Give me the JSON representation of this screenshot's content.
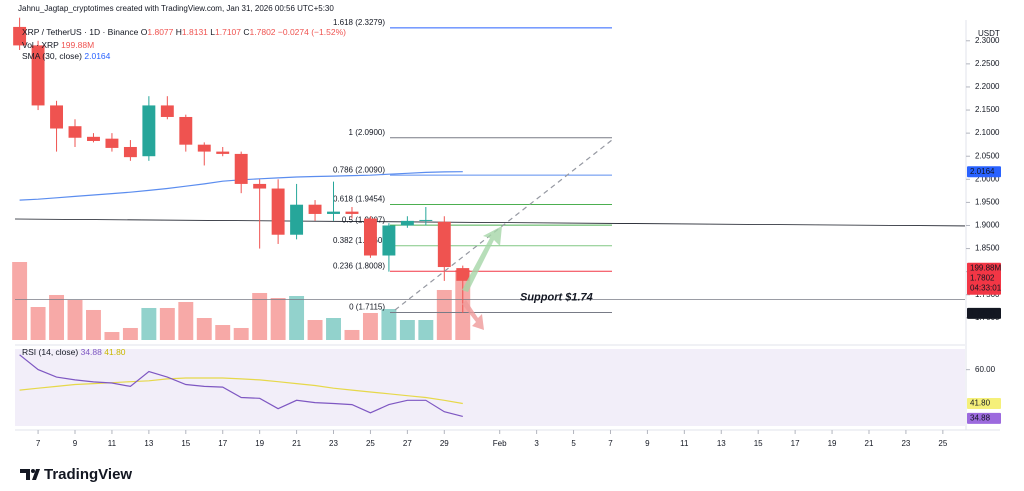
{
  "header": "Jahnu_Jagtap_cryptotimes created with TradingView.com, Jan 31, 2026 00:56 UTC+5:30",
  "chart_data": {
    "type": "candlestick",
    "symbol": "XRP / TetherUS · 1D · Binance",
    "ohlc_prefixes": [
      "O",
      "H",
      "L",
      "C"
    ],
    "change": "−0.0274 (−1.52%)",
    "currency": "USDT",
    "x": [
      6,
      7,
      8,
      9,
      10,
      11,
      12,
      13,
      14,
      15,
      16,
      17,
      18,
      19,
      20,
      21,
      22,
      23,
      24,
      25,
      26,
      27,
      28,
      29,
      30
    ],
    "open": [
      2.33,
      2.29,
      2.16,
      2.115,
      2.092,
      2.088,
      2.07,
      2.05,
      2.16,
      2.135,
      2.075,
      2.06,
      2.055,
      1.99,
      1.98,
      1.88,
      1.945,
      1.925,
      1.93,
      1.915,
      1.835,
      1.9,
      1.91,
      1.908,
      1.8077
    ],
    "high": [
      2.35,
      2.3,
      2.17,
      2.13,
      2.1,
      2.1,
      2.085,
      2.18,
      2.18,
      2.14,
      2.08,
      2.07,
      2.06,
      2.0,
      2.0,
      1.99,
      1.955,
      1.995,
      1.94,
      1.92,
      1.905,
      1.92,
      1.94,
      1.92,
      1.8131
    ],
    "low": [
      2.28,
      2.15,
      2.06,
      2.07,
      2.08,
      2.06,
      2.04,
      2.04,
      2.13,
      2.06,
      2.03,
      2.05,
      1.97,
      1.85,
      1.86,
      1.87,
      1.91,
      1.91,
      1.915,
      1.83,
      1.8,
      1.895,
      1.9,
      1.78,
      1.7107
    ],
    "close": [
      2.29,
      2.16,
      2.11,
      2.09,
      2.083,
      2.068,
      2.048,
      2.16,
      2.135,
      2.075,
      2.06,
      2.055,
      1.99,
      1.98,
      1.88,
      1.945,
      1.925,
      1.93,
      1.925,
      1.835,
      1.9,
      1.91,
      1.912,
      1.81,
      1.7802
    ],
    "up_color": "#26a69a",
    "down_color": "#ef5350",
    "xlim": [
      5.75,
      57.2
    ],
    "xticks": [
      7,
      9,
      11,
      13,
      15,
      17,
      19,
      21,
      23,
      25,
      27,
      29,
      {
        "value": 32,
        "label": "Feb"
      },
      {
        "value": 34,
        "label": "3"
      },
      {
        "value": 36,
        "label": "5"
      },
      {
        "value": 38,
        "label": "7"
      },
      {
        "value": 40,
        "label": "9"
      },
      {
        "value": 42,
        "label": "11"
      },
      {
        "value": 44,
        "label": "13"
      },
      {
        "value": 46,
        "label": "15"
      },
      {
        "value": 48,
        "label": "17"
      },
      {
        "value": 50,
        "label": "19"
      },
      {
        "value": 52,
        "label": "21"
      },
      {
        "value": 54,
        "label": "23"
      },
      {
        "value": 56,
        "label": "25"
      }
    ],
    "ylim": [
      1.652,
      2.345
    ],
    "yticks": [
      {
        "value": 1.7,
        "label": "1.7000"
      },
      {
        "value": 1.75,
        "label": "1.7500"
      },
      {
        "value": 1.8,
        "label": "1.8000"
      },
      {
        "value": 1.85,
        "label": "1.8500"
      },
      {
        "value": 1.9,
        "label": "1.9000"
      },
      {
        "value": 1.95,
        "label": "1.9500"
      },
      {
        "value": 2.0,
        "label": "2.0000"
      },
      {
        "value": 2.05,
        "label": "2.0500"
      },
      {
        "value": 2.1,
        "label": "2.1000"
      },
      {
        "value": 2.15,
        "label": "2.1500"
      },
      {
        "value": 2.2,
        "label": "2.2000"
      },
      {
        "value": 2.25,
        "label": "2.2500"
      },
      {
        "value": 2.3,
        "label": "2.3000"
      }
    ],
    "countdown": "04:33:01",
    "sma": {
      "name": "SMA (30, close)",
      "color": "#5b8def",
      "values": [
        1.955,
        1.957,
        1.96,
        1.963,
        1.966,
        1.969,
        1.972,
        1.976,
        1.98,
        1.985,
        1.99,
        1.996,
        1.999,
        2.001,
        2.003,
        2.005,
        2.006,
        2.007,
        2.008,
        2.009,
        2.011,
        2.013,
        2.015,
        2.016,
        2.0164
      ]
    },
    "volume": {
      "name": "Vol · XRP",
      "last_label": "199.88M",
      "values": [
        222.7,
        94.2,
        128.5,
        114.2,
        85.7,
        22.8,
        34.3,
        91.4,
        91.4,
        108.5,
        62.8,
        42.8,
        34.3,
        134.2,
        119.9,
        125.6,
        57.1,
        62.8,
        28.6,
        77.1,
        88.5,
        57.1,
        57.1,
        142.8,
        199.88
      ]
    },
    "fib_levels": [
      {
        "label": "1.618 (2.3279)",
        "value": 2.3279,
        "color": "#2962ff"
      },
      {
        "label": "1 (2.0900)",
        "value": 2.09,
        "color": "#787b86"
      },
      {
        "label": "0.786 (2.0090)",
        "value": 2.009,
        "color": "#5b8def"
      },
      {
        "label": "0.618 (1.9454)",
        "value": 1.9454,
        "color": "#4caf50"
      },
      {
        "label": "0.5 (1.9007)",
        "value": 1.9007,
        "color": "#4caf50"
      },
      {
        "label": "0.382 (1.8560)",
        "value": 1.856,
        "color": "#81c784"
      },
      {
        "label": "0.236 (1.8008)",
        "value": 1.8008,
        "color": "#f23645"
      },
      {
        "label": "0 (1.7115)",
        "value": 1.7115,
        "color": "#787b86"
      }
    ],
    "support": {
      "text": "Support $1.74",
      "value": 1.74,
      "label": "1.7400"
    },
    "trend_line": [
      1.914,
      1.899
    ],
    "rsi": {
      "name": "RSI (14, close)",
      "color": "#7e57c2",
      "values": [
        68,
        60,
        56,
        54.5,
        53.4,
        52.8,
        51,
        59,
        56,
        52,
        51,
        50.6,
        45,
        44.6,
        39,
        43.5,
        42.3,
        41.8,
        41.2,
        36.8,
        41.2,
        43.5,
        43.5,
        37.4,
        34.88
      ],
      "ma": {
        "color": "#e6d84a",
        "last_label": "41.80",
        "values": [
          49,
          50,
          51,
          52,
          52.5,
          53,
          53.5,
          54,
          55,
          55.5,
          55.5,
          55.5,
          55,
          54.5,
          53.5,
          52.5,
          51.5,
          50,
          49,
          48,
          47,
          46,
          45,
          43.5,
          41.8
        ]
      },
      "ylim": [
        29.7,
        71.1
      ],
      "yticks": [
        {
          "value": 60,
          "label": "60.00"
        }
      ]
    }
  },
  "footer": "TradingView"
}
